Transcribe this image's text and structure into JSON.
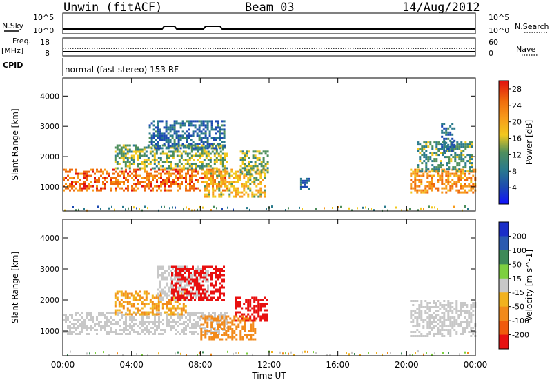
{
  "header": {
    "radar": "Unwin (fitACF)",
    "beam": "Beam 03",
    "date": "14/Aug/2012"
  },
  "nsky_panel": {
    "left_label": "N.Sky",
    "left_ticks": [
      "10^5",
      "10^0"
    ],
    "right_ticks": [
      "10^5",
      "10^0"
    ],
    "right_label": "N.Search"
  },
  "freq_panel": {
    "left_label_1": "Freq.",
    "left_label_2": "[MHz]",
    "left_ticks": [
      "18",
      "8"
    ],
    "right_ticks": [
      "60",
      "0"
    ],
    "right_label": "Nave"
  },
  "cpid": {
    "label": "CPID",
    "text": "normal (fast stereo) 153 RF"
  },
  "chart_data": [
    {
      "type": "heatmap",
      "title": "",
      "xlabel": "",
      "ylabel": "Slant Range [km]",
      "xlim": [
        0,
        24
      ],
      "ylim": [
        200,
        4600
      ],
      "y_ticks": [
        "1000",
        "2000",
        "3000",
        "4000"
      ],
      "colorbar": {
        "label": "Power [dB]",
        "ticks": [
          "4",
          "8",
          "12",
          "16",
          "20",
          "24",
          "28"
        ],
        "range": [
          0,
          30
        ],
        "colors": [
          "#1010ff",
          "#1c4ab0",
          "#2a7a8c",
          "#4e8f5c",
          "#f2c81e",
          "#f79a1a",
          "#ef6a0c",
          "#e01010"
        ]
      },
      "echo_regions": [
        {
          "t0": 0.0,
          "t1": 9.6,
          "r0": 900,
          "r1": 1600,
          "level": 24
        },
        {
          "t0": 3.0,
          "t1": 9.6,
          "r0": 1600,
          "r1": 2400,
          "level": 14
        },
        {
          "t0": 5.0,
          "t1": 9.4,
          "r0": 2300,
          "r1": 3200,
          "level": 8
        },
        {
          "t0": 8.2,
          "t1": 11.8,
          "r0": 700,
          "r1": 1600,
          "level": 18
        },
        {
          "t0": 10.3,
          "t1": 11.9,
          "r0": 1400,
          "r1": 2200,
          "level": 14
        },
        {
          "t0": 13.8,
          "t1": 14.3,
          "r0": 900,
          "r1": 1300,
          "level": 8
        },
        {
          "t0": 20.2,
          "t1": 24.0,
          "r0": 800,
          "r1": 1600,
          "level": 22
        },
        {
          "t0": 20.6,
          "t1": 23.8,
          "r0": 1500,
          "r1": 2500,
          "level": 12
        },
        {
          "t0": 22.0,
          "t1": 22.8,
          "r0": 2200,
          "r1": 3100,
          "level": 8
        }
      ]
    },
    {
      "type": "heatmap",
      "title": "",
      "xlabel": "Time UT",
      "ylabel": "Slant Range [km]",
      "xlim": [
        0,
        24
      ],
      "ylim": [
        200,
        4600
      ],
      "x_ticks": [
        "00:00",
        "04:00",
        "08:00",
        "12:00",
        "16:00",
        "20:00",
        "00:00"
      ],
      "y_ticks": [
        "1000",
        "2000",
        "3000",
        "4000"
      ],
      "colorbar": {
        "label": "Velocity [m s^-1]",
        "ticks": [
          "200",
          "100",
          "50",
          "15",
          "-15",
          "-50",
          "-100",
          "-200"
        ],
        "range": [
          -250,
          250
        ],
        "colors": [
          "#1a2ec8",
          "#2a5ab0",
          "#3d8a58",
          "#7dd040",
          "#c8c8c8",
          "#f2b21e",
          "#f28a1a",
          "#f05a0c",
          "#e81010"
        ]
      },
      "echo_regions": [
        {
          "t0": 0.0,
          "t1": 9.6,
          "r0": 900,
          "r1": 1600,
          "level": 0
        },
        {
          "t0": 3.0,
          "t1": 7.2,
          "r0": 1500,
          "r1": 2300,
          "level": -30
        },
        {
          "t0": 5.5,
          "t1": 8.5,
          "r0": 2000,
          "r1": 3100,
          "level": 0
        },
        {
          "t0": 6.3,
          "t1": 9.4,
          "r0": 2000,
          "r1": 3100,
          "level": -180
        },
        {
          "t0": 8.0,
          "t1": 11.2,
          "r0": 700,
          "r1": 1500,
          "level": -60
        },
        {
          "t0": 10.0,
          "t1": 11.9,
          "r0": 1300,
          "r1": 2100,
          "level": -200
        },
        {
          "t0": 20.2,
          "t1": 24.0,
          "r0": 800,
          "r1": 2000,
          "level": 0
        }
      ]
    }
  ]
}
